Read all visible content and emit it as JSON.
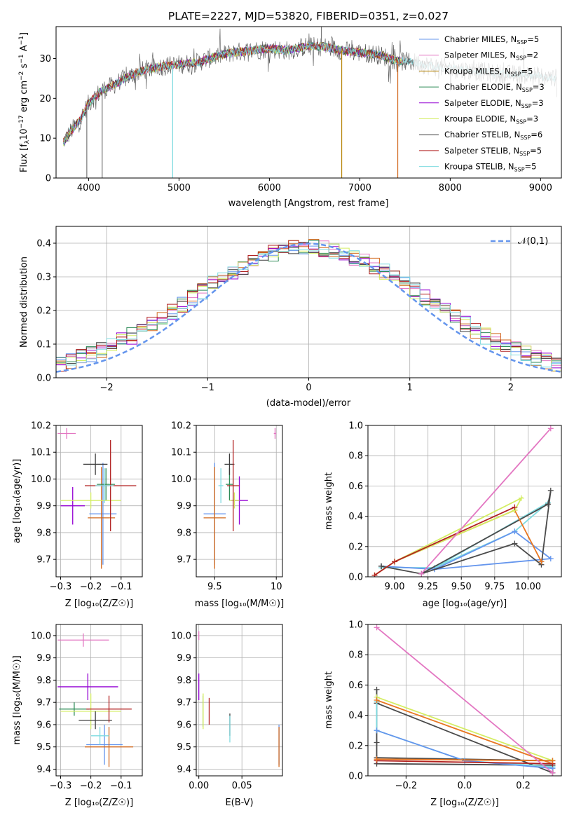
{
  "figure": {
    "title": "PLATE=2227, MJD=53820, FIBERID=0351, z=0.027"
  },
  "chart_data": [
    {
      "id": "spectrum",
      "type": "line",
      "xlabel": "wavelength [Angstrom, rest frame]",
      "ylabel": "Flux [f$_\\lambda$10$^{-17}$ erg cm$^{-2}$ s$^{-1}$ A$^{-1}$]",
      "ylabel_parts": {
        "a": "Flux [f",
        "b": "λ",
        "c": "10",
        "d": "−17",
        "e": " erg cm",
        "f": "−2",
        "g": " s",
        "h": "−1",
        "i": " A",
        "j": "−1",
        "k": "]"
      },
      "xlim": [
        3640,
        9230
      ],
      "ylim": [
        0,
        38
      ],
      "xticks": [
        4000,
        5000,
        6000,
        7000,
        8000,
        9000
      ],
      "yticks": [
        0,
        10,
        20,
        30
      ],
      "spikes": [
        [
          3980,
          0
        ],
        [
          4150,
          0
        ],
        [
          4930,
          0
        ],
        [
          6800,
          0
        ],
        [
          7420,
          0
        ],
        [
          6575,
          38
        ]
      ],
      "legend_position": "upper-right",
      "series": [
        {
          "name": "Chabrier MILES, N",
          "sub": "SSP",
          "suffix": "=5",
          "color": "#6495ed"
        },
        {
          "name": "Salpeter MILES, N",
          "sub": "SSP",
          "suffix": "=2",
          "color": "#e377c2"
        },
        {
          "name": "Kroupa MILES, N",
          "sub": "SSP",
          "suffix": "=5",
          "color": "#b8860b"
        },
        {
          "name": "Chabrier ELODIE, N",
          "sub": "SSP",
          "suffix": "=3",
          "color": "#2e8b57"
        },
        {
          "name": "Salpeter ELODIE, N",
          "sub": "SSP",
          "suffix": "=3",
          "color": "#9400d3"
        },
        {
          "name": "Kroupa ELODIE, N",
          "sub": "SSP",
          "suffix": "=3",
          "color": "#d4ed63"
        },
        {
          "name": "Chabrier STELIB, N",
          "sub": "SSP",
          "suffix": "=6",
          "color": "#3c3c3c"
        },
        {
          "name": "Salpeter STELIB, N",
          "sub": "SSP",
          "suffix": "=5",
          "color": "#b22222"
        },
        {
          "name": "Kroupa STELIB, N",
          "sub": "SSP",
          "suffix": "=5",
          "color": "#7fdbe0"
        }
      ],
      "continuum": [
        [
          3720,
          9
        ],
        [
          3780,
          11
        ],
        [
          3850,
          13
        ],
        [
          3920,
          15
        ],
        [
          3980,
          18
        ],
        [
          4050,
          20
        ],
        [
          4150,
          22
        ],
        [
          4250,
          23
        ],
        [
          4400,
          25
        ],
        [
          4600,
          27
        ],
        [
          4800,
          28
        ],
        [
          5000,
          28.5
        ],
        [
          5200,
          29
        ],
        [
          5400,
          30.5
        ],
        [
          5600,
          31.5
        ],
        [
          5800,
          32
        ],
        [
          6000,
          32.5
        ],
        [
          6200,
          32
        ],
        [
          6400,
          33
        ],
        [
          6600,
          33
        ],
        [
          6800,
          32
        ],
        [
          7000,
          31.5
        ],
        [
          7200,
          31
        ],
        [
          7400,
          29.5
        ],
        [
          7600,
          29
        ],
        [
          7800,
          28
        ],
        [
          8000,
          27.5
        ],
        [
          8200,
          27
        ],
        [
          8400,
          26.5
        ],
        [
          8600,
          26
        ],
        [
          8800,
          26
        ],
        [
          9000,
          25.5
        ],
        [
          9180,
          25
        ]
      ]
    },
    {
      "id": "residuals",
      "type": "histogram",
      "xlabel": "(data-model)/error",
      "ylabel": "Normed distribution",
      "xlim": [
        -2.5,
        2.5
      ],
      "ylim": [
        0,
        0.45
      ],
      "xticks": [
        -2,
        -1,
        0,
        1,
        2
      ],
      "yticks": [
        0.0,
        0.1,
        0.2,
        0.3,
        0.4
      ],
      "reference_label": "𝒩(0,1)",
      "reference_color": "#6495ed",
      "legend_position": "upper-right"
    },
    {
      "id": "age_vs_Z",
      "type": "errorbar",
      "xlabel": "Z [log₁₀(Z/Z☉)]",
      "ylabel": "age  [log₁₀(age/yr)]",
      "xlim": [
        -0.315,
        -0.03
      ],
      "ylim": [
        9.635,
        10.2
      ],
      "xticks": [
        -0.3,
        -0.2,
        -0.1
      ],
      "yticks": [
        9.7,
        9.8,
        9.9,
        10.0,
        10.1,
        10.2
      ],
      "points": [
        {
          "series": 0,
          "x": -0.16,
          "xerr": 0.045,
          "y": 9.87,
          "yerr": 0.19
        },
        {
          "series": 1,
          "x": -0.28,
          "xerr": 0.03,
          "y": 10.17,
          "yerr": 0.02
        },
        {
          "series": 2,
          "x": -0.165,
          "xerr": 0.045,
          "y": 9.855,
          "yerr": 0.19
        },
        {
          "series": 3,
          "x": -0.15,
          "xerr": 0.03,
          "y": 9.98,
          "yerr": 0.06
        },
        {
          "series": 4,
          "x": -0.26,
          "xerr": 0.04,
          "y": 9.9,
          "yerr": 0.07
        },
        {
          "series": 5,
          "x": -0.2,
          "xerr": 0.1,
          "y": 9.92,
          "yerr": 0.03
        },
        {
          "series": 6,
          "x": -0.185,
          "xerr": 0.04,
          "y": 10.055,
          "yerr": 0.04
        },
        {
          "series": 7,
          "x": -0.135,
          "xerr": 0.085,
          "y": 9.975,
          "yerr": 0.17
        },
        {
          "series": 8,
          "x": -0.155,
          "xerr": 0.03,
          "y": 9.975,
          "yerr": 0.065
        }
      ]
    },
    {
      "id": "age_vs_mass",
      "type": "errorbar",
      "xlabel": "mass [log₁₀(M/M☉)]",
      "ylabel": "",
      "xlim": [
        9.35,
        10.05
      ],
      "ylim": [
        9.635,
        10.2
      ],
      "xticks": [
        9.5,
        10.0
      ],
      "yticks": [
        9.7,
        9.8,
        9.9,
        10.0,
        10.1,
        10.2
      ],
      "points": [
        {
          "series": 0,
          "x": 9.5,
          "xerr": 0.09,
          "y": 9.87,
          "yerr": 0.19
        },
        {
          "series": 1,
          "x": 9.99,
          "xerr": 0.01,
          "y": 10.17,
          "yerr": 0.02
        },
        {
          "series": 2,
          "x": 9.5,
          "xerr": 0.09,
          "y": 9.855,
          "yerr": 0.19
        },
        {
          "series": 3,
          "x": 9.62,
          "xerr": 0.03,
          "y": 9.98,
          "yerr": 0.06
        },
        {
          "series": 4,
          "x": 9.7,
          "xerr": 0.07,
          "y": 9.92,
          "yerr": 0.09
        },
        {
          "series": 5,
          "x": 9.66,
          "xerr": 0.04,
          "y": 9.92,
          "yerr": 0.03
        },
        {
          "series": 6,
          "x": 9.62,
          "xerr": 0.04,
          "y": 10.055,
          "yerr": 0.04
        },
        {
          "series": 7,
          "x": 9.65,
          "xerr": 0.05,
          "y": 9.975,
          "yerr": 0.17
        },
        {
          "series": 8,
          "x": 9.55,
          "xerr": 0.02,
          "y": 9.975,
          "yerr": 0.065
        }
      ]
    },
    {
      "id": "weight_vs_age",
      "type": "line",
      "xlabel": "age  [log₁₀(age/yr)]",
      "ylabel": "mass weight",
      "xlim": [
        8.8,
        10.25
      ],
      "ylim": [
        0,
        1
      ],
      "xticks": [
        9.0,
        9.25,
        9.5,
        9.75,
        10.0
      ],
      "xticklabels": [
        "9.00",
        "9.25",
        "9.50",
        "9.75",
        "10.00"
      ],
      "yticks": [
        0.0,
        0.2,
        0.4,
        0.6,
        0.8,
        1.0
      ],
      "lines": [
        {
          "series": 8,
          "x": [
            8.9,
            9.3,
            9.9,
            10.15,
            9.3
          ],
          "y": [
            0.06,
            0.06,
            0.3,
            0.49,
            0.06
          ]
        },
        {
          "series": 0,
          "x": [
            8.9,
            9.3,
            9.9,
            10.17,
            9.3
          ],
          "y": [
            0.07,
            0.05,
            0.3,
            0.12,
            0.05
          ]
        },
        {
          "series": 6,
          "x": [
            8.9,
            9.2,
            9.9,
            10.1,
            10.17,
            10.15,
            9.2,
            8.9
          ],
          "y": [
            0.07,
            0.02,
            0.22,
            0.08,
            0.57,
            0.48,
            0.02,
            0.07
          ]
        },
        {
          "series": 2,
          "x": [
            8.85,
            9.0,
            9.9,
            10.1
          ],
          "y": [
            0.01,
            0.1,
            0.44,
            0.1
          ]
        },
        {
          "series": 5,
          "x": [
            8.85,
            9.0,
            9.95,
            9.9,
            9.0
          ],
          "y": [
            0.01,
            0.1,
            0.52,
            0.44,
            0.1
          ]
        },
        {
          "series": 7,
          "x": [
            8.85,
            9.0,
            9.9
          ],
          "y": [
            0.01,
            0.1,
            0.46
          ]
        },
        {
          "series": 1,
          "x": [
            9.2,
            10.17
          ],
          "y": [
            0.02,
            0.98
          ]
        }
      ]
    },
    {
      "id": "mass_vs_Z",
      "type": "errorbar",
      "xlabel": "Z [log₁₀(Z/Z☉)]",
      "ylabel": "mass [log₁₀(M/M☉)]",
      "xlim": [
        -0.315,
        -0.03
      ],
      "ylim": [
        9.37,
        10.05
      ],
      "xticks": [
        -0.3,
        -0.2,
        -0.1
      ],
      "yticks": [
        9.4,
        9.5,
        9.6,
        9.7,
        9.8,
        9.9,
        10.0
      ],
      "points": [
        {
          "series": 0,
          "x": -0.155,
          "xerr": 0.06,
          "y": 9.51,
          "yerr": 0.09
        },
        {
          "series": 1,
          "x": -0.225,
          "xerr": 0.085,
          "y": 9.98,
          "yerr": 0.03
        },
        {
          "series": 2,
          "x": -0.14,
          "xerr": 0.08,
          "y": 9.5,
          "yerr": 0.09
        },
        {
          "series": 3,
          "x": -0.255,
          "xerr": 0.05,
          "y": 9.67,
          "yerr": 0.03
        },
        {
          "series": 4,
          "x": -0.21,
          "xerr": 0.1,
          "y": 9.77,
          "yerr": 0.06
        },
        {
          "series": 5,
          "x": -0.2,
          "xerr": 0.1,
          "y": 9.66,
          "yerr": 0.08
        },
        {
          "series": 6,
          "x": -0.185,
          "xerr": 0.055,
          "y": 9.62,
          "yerr": 0.04
        },
        {
          "series": 7,
          "x": -0.14,
          "xerr": 0.075,
          "y": 9.67,
          "yerr": 0.06
        },
        {
          "series": 8,
          "x": -0.17,
          "xerr": 0.03,
          "y": 9.55,
          "yerr": 0.04
        }
      ]
    },
    {
      "id": "mass_vs_ebv",
      "type": "errorbar",
      "xlabel": "E(B-V)",
      "ylabel": "",
      "xlim": [
        -0.003,
        0.097
      ],
      "ylim": [
        9.37,
        10.05
      ],
      "xticks": [
        0.0,
        0.05
      ],
      "xticklabels": [
        "0.00",
        "0.05"
      ],
      "yticks": [
        9.4,
        9.5,
        9.6,
        9.7,
        9.8,
        9.9,
        10.0
      ],
      "points": [
        {
          "series": 0,
          "x": 0.093,
          "xerr": 0,
          "y": 9.51,
          "yerr": 0.09
        },
        {
          "series": 1,
          "x": 0.0,
          "xerr": 0,
          "y": 10.0,
          "yerr": 0.02
        },
        {
          "series": 2,
          "x": 0.093,
          "xerr": 0,
          "y": 9.5,
          "yerr": 0.09
        },
        {
          "series": 3,
          "x": 0.005,
          "xerr": 0,
          "y": 9.66,
          "yerr": 0.07
        },
        {
          "series": 4,
          "x": 0.0,
          "xerr": 0,
          "y": 9.77,
          "yerr": 0.06
        },
        {
          "series": 5,
          "x": 0.005,
          "xerr": 0,
          "y": 9.66,
          "yerr": 0.08
        },
        {
          "series": 6,
          "x": 0.036,
          "xerr": 0,
          "y": 9.6,
          "yerr": 0.05
        },
        {
          "series": 7,
          "x": 0.012,
          "xerr": 0,
          "y": 9.66,
          "yerr": 0.06
        },
        {
          "series": 8,
          "x": 0.036,
          "xerr": 0,
          "y": 9.58,
          "yerr": 0.06
        }
      ]
    },
    {
      "id": "weight_vs_Z",
      "type": "line",
      "xlabel": "Z [log₁₀(Z/Z☉)]",
      "ylabel": "mass weight",
      "xlim": [
        -0.33,
        0.33
      ],
      "ylim": [
        0,
        1
      ],
      "xticks": [
        -0.2,
        0.0,
        0.2
      ],
      "xticklabels": [
        "−0.2",
        "0.0",
        "0.2"
      ],
      "yticks": [
        0.0,
        0.2,
        0.4,
        0.6,
        0.8,
        1.0
      ],
      "lines": [
        {
          "series": 6,
          "x": [
            -0.3,
            -0.3,
            -0.3,
            0.3,
            0.3,
            0.3
          ],
          "y": [
            0.57,
            0.22,
            0.08,
            0.07,
            0.02,
            0.07
          ]
        },
        {
          "series": 6,
          "x": [
            -0.3,
            0.3
          ],
          "y": [
            0.48,
            0.02
          ]
        },
        {
          "series": 6,
          "x": [
            -0.3,
            0.3
          ],
          "y": [
            0.12,
            0.1
          ]
        },
        {
          "series": 8,
          "x": [
            -0.3,
            -0.3,
            0.0,
            0.3,
            0.3
          ],
          "y": [
            0.49,
            0.3,
            0.1,
            0.06,
            0.06
          ]
        },
        {
          "series": 0,
          "x": [
            -0.3,
            0.0,
            0.3
          ],
          "y": [
            0.3,
            0.1,
            0.05
          ]
        },
        {
          "series": 5,
          "x": [
            -0.3,
            0.3
          ],
          "y": [
            0.52,
            0.1
          ]
        },
        {
          "series": 2,
          "x": [
            -0.3,
            0.3
          ],
          "y": [
            0.5,
            0.08
          ]
        },
        {
          "series": 7,
          "x": [
            -0.3,
            0.3
          ],
          "y": [
            0.1,
            0.08
          ]
        },
        {
          "series": 2,
          "x": [
            -0.3,
            0.3
          ],
          "y": [
            0.11,
            0.1
          ]
        },
        {
          "series": 1,
          "x": [
            -0.3,
            0.3
          ],
          "y": [
            0.98,
            0.02
          ]
        }
      ]
    }
  ]
}
